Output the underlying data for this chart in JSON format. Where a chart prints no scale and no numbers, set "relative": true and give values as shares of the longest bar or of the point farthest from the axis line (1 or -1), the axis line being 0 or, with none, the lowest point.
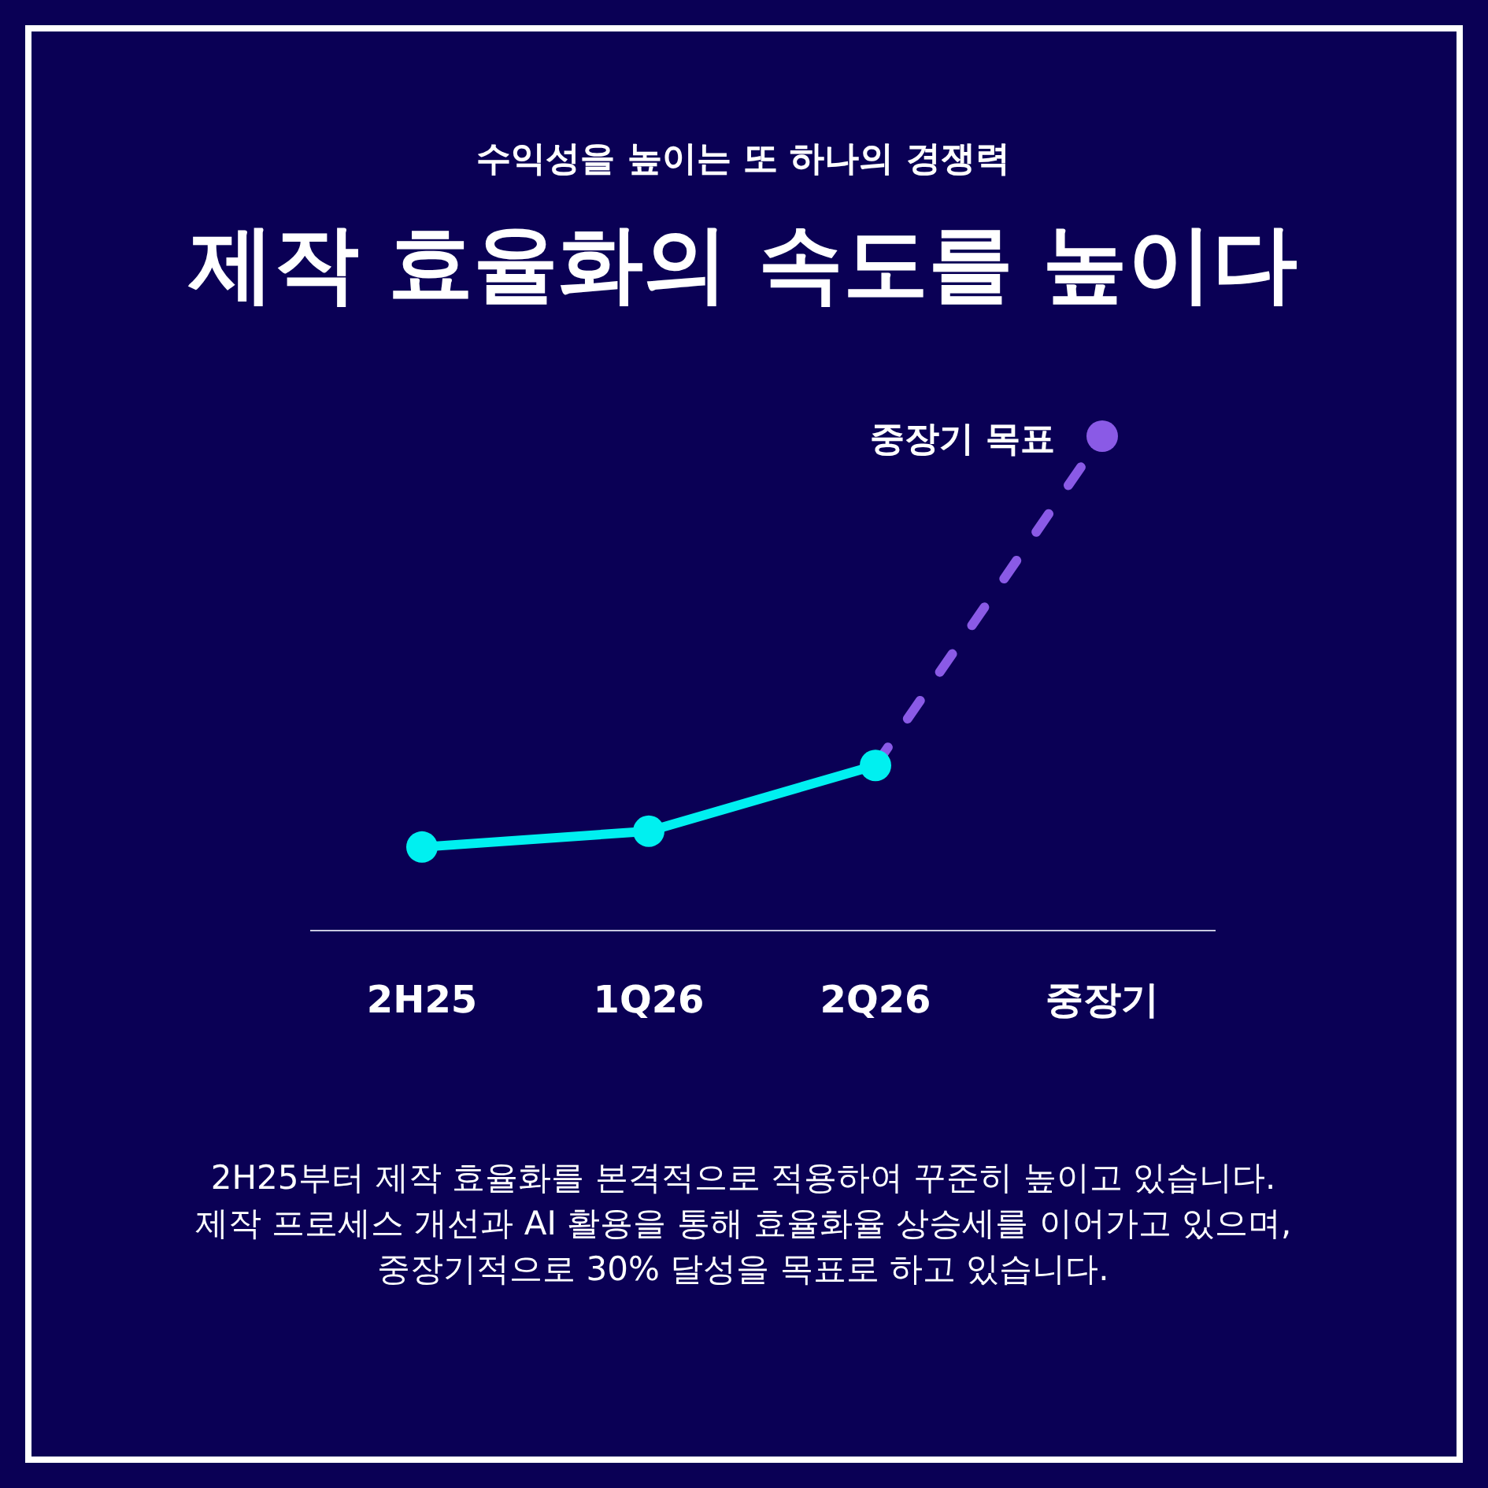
{
  "chart_data": {
    "type": "line",
    "title": "제작 효율화의 속도를 높이다",
    "subtitle": "수익성을 높이는 또 하나의 경쟁력",
    "categories": [
      "2H25",
      "1Q26",
      "2Q26",
      "중장기"
    ],
    "relative": true,
    "marker": "circle",
    "series": [
      {
        "color": "#00f0f0",
        "line_style": "solid",
        "values": [
          0.169,
          0.201,
          0.334,
          null
        ]
      },
      {
        "color": "#8a5ae6",
        "line_style": "dashed",
        "values": [
          null,
          null,
          0.334,
          1
        ]
      }
    ],
    "annotations": [
      {
        "text": "중장기 목표",
        "x": "중장기",
        "y": 1
      },
      "2H25부터 제작 효율화를 본격적으로 적용하여 꾸준히 높이고 있습니다.",
      "제작 프로세스 개선과 AI 활용을 통해 효율화율 상승세를 이어가고 있으며,",
      "중장기적으로 30% 달성을 목표로 하고 있습니다."
    ]
  }
}
